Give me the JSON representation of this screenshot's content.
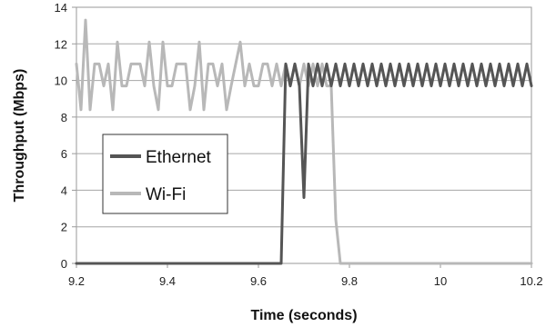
{
  "chart_data": {
    "type": "line",
    "xlabel": "Time (seconds)",
    "ylabel": "Throughput (Mbps)",
    "xlim": [
      9.2,
      10.2
    ],
    "ylim": [
      0,
      14
    ],
    "xticks": [
      "9.2",
      "9.4",
      "9.6",
      "9.8",
      "10",
      "10.2"
    ],
    "yticks": [
      "0",
      "2",
      "4",
      "6",
      "8",
      "10",
      "12",
      "14"
    ],
    "grid": "horizontal",
    "legend_position": "center-left",
    "series": [
      {
        "name": "Ethernet",
        "color": "#555555",
        "x": [
          9.2,
          9.65,
          9.66,
          9.67,
          9.68,
          9.69,
          9.7,
          9.71,
          9.72,
          9.73,
          9.74,
          9.75,
          9.76,
          9.77,
          9.78,
          9.79,
          9.8,
          9.81,
          9.82,
          9.83,
          9.84,
          9.85,
          9.86,
          9.87,
          9.88,
          9.89,
          9.9,
          9.91,
          9.92,
          9.93,
          9.94,
          9.95,
          9.96,
          9.97,
          9.98,
          9.99,
          10.0,
          10.01,
          10.02,
          10.03,
          10.04,
          10.05,
          10.06,
          10.07,
          10.08,
          10.09,
          10.1,
          10.11,
          10.12,
          10.13,
          10.14,
          10.15,
          10.16,
          10.17,
          10.18,
          10.19,
          10.2
        ],
        "values": [
          0,
          0,
          10.9,
          9.7,
          10.9,
          9.7,
          3.6,
          10.9,
          9.7,
          10.9,
          9.7,
          10.9,
          9.7,
          10.9,
          9.7,
          10.9,
          9.7,
          10.9,
          9.7,
          10.9,
          9.7,
          10.9,
          9.7,
          10.9,
          9.7,
          10.9,
          9.7,
          10.9,
          9.7,
          10.9,
          9.7,
          10.9,
          9.7,
          10.9,
          9.7,
          10.9,
          9.7,
          10.9,
          9.7,
          10.9,
          9.7,
          10.9,
          9.7,
          10.9,
          9.7,
          10.9,
          9.7,
          10.9,
          9.7,
          10.9,
          9.7,
          10.9,
          9.7,
          10.9,
          9.7,
          10.9,
          9.7
        ]
      },
      {
        "name": "Wi-Fi",
        "color": "#b8b8b8",
        "x": [
          9.2,
          9.21,
          9.22,
          9.23,
          9.24,
          9.25,
          9.26,
          9.27,
          9.28,
          9.29,
          9.3,
          9.31,
          9.32,
          9.33,
          9.34,
          9.35,
          9.36,
          9.37,
          9.38,
          9.39,
          9.4,
          9.41,
          9.42,
          9.43,
          9.44,
          9.45,
          9.46,
          9.47,
          9.48,
          9.49,
          9.5,
          9.51,
          9.52,
          9.53,
          9.54,
          9.55,
          9.56,
          9.57,
          9.58,
          9.59,
          9.6,
          9.61,
          9.62,
          9.63,
          9.64,
          9.65,
          9.66,
          9.67,
          9.68,
          9.69,
          9.7,
          9.71,
          9.72,
          9.73,
          9.74,
          9.75,
          9.76,
          9.77,
          9.78,
          9.79,
          9.8,
          10.2
        ],
        "values": [
          10.9,
          8.4,
          13.3,
          8.4,
          10.9,
          10.9,
          9.7,
          10.9,
          8.4,
          12.1,
          9.7,
          9.7,
          10.9,
          10.9,
          10.9,
          9.7,
          12.1,
          9.7,
          8.4,
          12.1,
          9.7,
          9.7,
          10.9,
          10.9,
          10.9,
          8.4,
          9.7,
          12.1,
          8.4,
          10.9,
          10.9,
          9.7,
          10.9,
          8.4,
          9.7,
          10.9,
          12.1,
          9.7,
          10.9,
          9.7,
          9.7,
          10.9,
          10.9,
          9.7,
          10.9,
          9.7,
          10.9,
          9.7,
          10.9,
          9.7,
          10.9,
          9.7,
          10.9,
          9.7,
          10.9,
          9.7,
          9.7,
          2.4,
          0,
          0,
          0,
          0
        ]
      }
    ]
  }
}
